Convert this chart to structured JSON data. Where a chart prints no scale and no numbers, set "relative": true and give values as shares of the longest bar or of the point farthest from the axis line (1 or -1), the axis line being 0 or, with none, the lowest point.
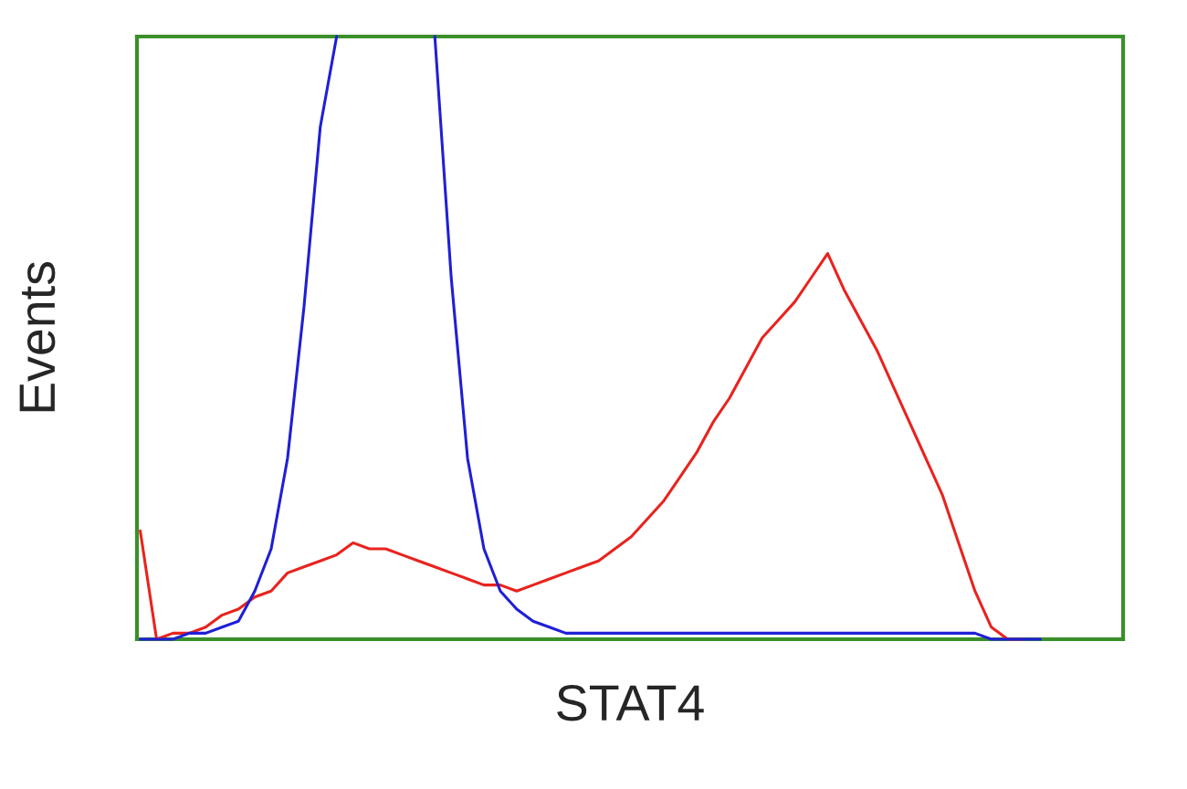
{
  "chart_data": {
    "type": "line",
    "xlabel": "STAT4",
    "ylabel": "Events",
    "relative": true,
    "grid": false,
    "categories": [
      null,
      null,
      null,
      null,
      null,
      null,
      null,
      null,
      null,
      null,
      null,
      null,
      null,
      null,
      null,
      null,
      null,
      null,
      null,
      null,
      null,
      null,
      null,
      null,
      null,
      null,
      null,
      null,
      null,
      null,
      null,
      null,
      null,
      null,
      null,
      null,
      null,
      null,
      null,
      null,
      null,
      null,
      null,
      null,
      null,
      null,
      null,
      null,
      null,
      null,
      null,
      null,
      null,
      null,
      null,
      null,
      null,
      null,
      null,
      null,
      null
    ],
    "series": [
      {
        "color": "#e8231e",
        "values": [
          0.18,
          0.0,
          0.01,
          0.01,
          0.02,
          0.04,
          0.05,
          0.07,
          0.08,
          0.11,
          0.12,
          0.13,
          0.14,
          0.16,
          0.15,
          0.15,
          0.14,
          0.13,
          0.12,
          0.11,
          0.1,
          0.09,
          0.09,
          0.08,
          0.09,
          0.1,
          0.11,
          0.12,
          0.13,
          0.15,
          0.17,
          0.2,
          0.23,
          0.27,
          0.31,
          0.36,
          0.4,
          0.45,
          0.5,
          0.53,
          0.56,
          0.6,
          0.64,
          0.58,
          0.53,
          0.48,
          0.42,
          0.36,
          0.3,
          0.24,
          0.16,
          0.08,
          0.02,
          0.0,
          0.0,
          null,
          null,
          null,
          null,
          null,
          null
        ]
      },
      {
        "color": "#1f1fd6",
        "values": [
          0.0,
          0.0,
          0.0,
          0.01,
          0.01,
          0.02,
          0.03,
          0.08,
          0.15,
          0.3,
          0.55,
          0.85,
          1.0,
          null,
          null,
          null,
          null,
          null,
          1.0,
          0.6,
          0.3,
          0.15,
          0.08,
          0.05,
          0.03,
          0.02,
          0.01,
          0.01,
          0.01,
          0.01,
          0.01,
          0.01,
          0.01,
          0.01,
          0.01,
          0.01,
          0.01,
          0.01,
          0.01,
          0.01,
          0.01,
          0.01,
          0.01,
          0.01,
          0.01,
          0.01,
          0.01,
          0.01,
          0.01,
          0.01,
          0.01,
          0.01,
          0.0,
          0.0,
          0.0,
          0.0,
          null,
          null,
          null,
          null,
          null
        ]
      }
    ]
  }
}
